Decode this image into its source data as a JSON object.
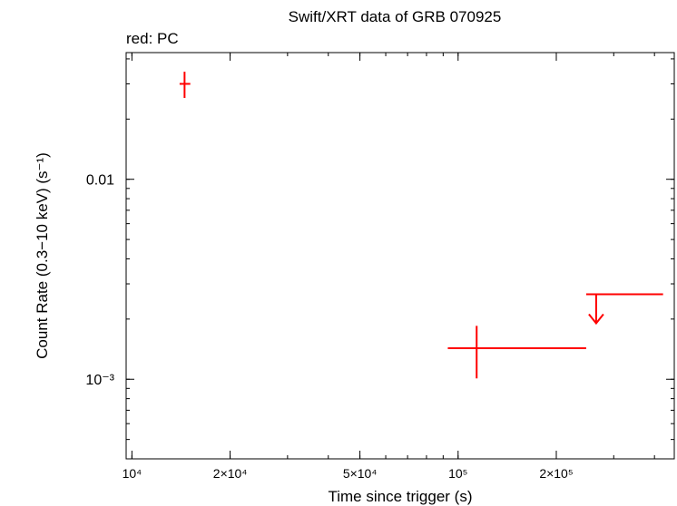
{
  "chart_data": {
    "type": "scatter",
    "title": "Swift/XRT data of GRB 070925",
    "subtitle": "red: PC",
    "xlabel": "Time since trigger (s)",
    "ylabel": "Count Rate (0.3−10 keV) (s⁻¹)",
    "x_scale": "log",
    "y_scale": "log",
    "xlim": [
      9600,
      460000
    ],
    "ylim": [
      0.0004,
      0.043
    ],
    "x_ticks": [
      {
        "value": 10000,
        "label": "10⁴"
      },
      {
        "value": 20000,
        "label": "2×10⁴"
      },
      {
        "value": 50000,
        "label": "5×10⁴"
      },
      {
        "value": 100000,
        "label": "10⁵"
      },
      {
        "value": 200000,
        "label": "2×10⁵"
      }
    ],
    "y_ticks": [
      {
        "value": 0.01,
        "label": "0.01"
      },
      {
        "value": 0.001,
        "label": "10⁻³"
      }
    ],
    "series": [
      {
        "color": "#ff0000",
        "points": [
          {
            "x": 14500,
            "x_lo": 14000,
            "x_hi": 15100,
            "y": 0.03,
            "y_lo": 0.0255,
            "y_hi": 0.0345
          },
          {
            "x": 114000,
            "x_lo": 93000,
            "x_hi": 247000,
            "y": 0.00143,
            "y_lo": 0.00101,
            "y_hi": 0.00185
          }
        ],
        "upper_limits": [
          {
            "x": 265000,
            "x_lo": 247000,
            "x_hi": 425000,
            "y": 0.00266
          }
        ]
      }
    ]
  }
}
